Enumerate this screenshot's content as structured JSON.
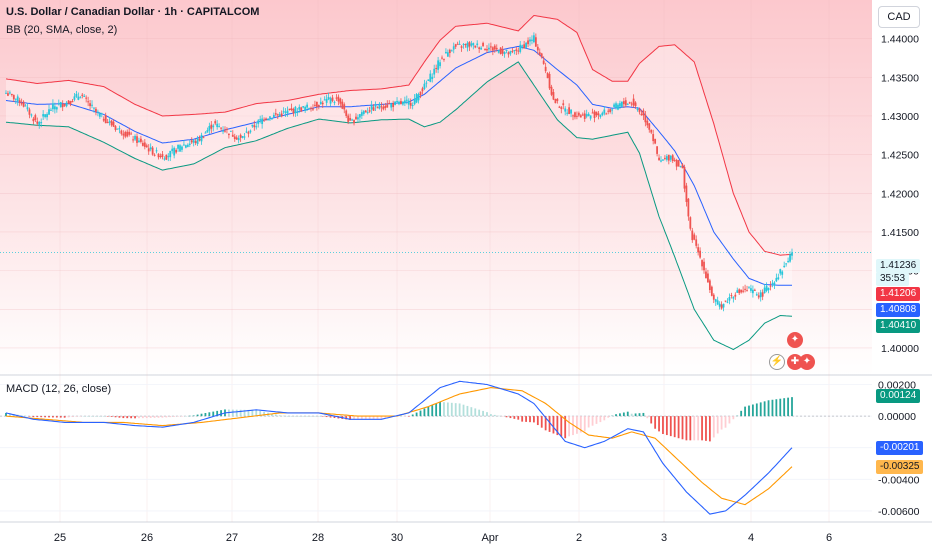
{
  "header": {
    "symbol_title": "U.S. Dollar / Canadian Dollar · 1h · CAPITALCOM",
    "bb_label": "BB (20, SMA, close, 2)",
    "macd_label": "MACD (12, 26, close)",
    "currency_button": "CAD"
  },
  "colors": {
    "up": "#26c6da",
    "down": "#ef5350",
    "bb_upper": "#f23645",
    "bb_basis": "#2962ff",
    "bb_lower": "#089981",
    "macd_line": "#2962ff",
    "signal_line": "#ff9800",
    "hist_pos": "#26a69a",
    "hist_neg": "#ef5350",
    "bg_pink": "#fdd9dc"
  },
  "price_badges": [
    {
      "text": "1.41236",
      "color": "#e0f7fa",
      "textcolor": "#131722"
    },
    {
      "text": "35:53",
      "color": "#e0f7fa",
      "textcolor": "#131722"
    },
    {
      "text": "1.41206",
      "color": "#f23645",
      "textcolor": "#ffffff"
    },
    {
      "text": "1.40808",
      "color": "#2962ff",
      "textcolor": "#ffffff"
    },
    {
      "text": "1.40410",
      "color": "#089981",
      "textcolor": "#ffffff"
    }
  ],
  "macd_badges": [
    {
      "text": "0.00124",
      "color": "#089981"
    },
    {
      "text": "-0.00201",
      "color": "#2962ff"
    },
    {
      "text": "-0.00325",
      "color": "#ffb74d"
    }
  ],
  "chart_data": [
    {
      "type": "candlestick",
      "title": "U.S. Dollar / Canadian Dollar · 1h · CAPITALCOM",
      "ylim": [
        1.3965,
        1.445
      ],
      "y_ticks": [
        "1.44000",
        "1.43500",
        "1.43000",
        "1.42500",
        "1.42000",
        "1.41500",
        "1.41000",
        "1.40500",
        "1.40000"
      ],
      "y_tick_values": [
        1.44,
        1.435,
        1.43,
        1.425,
        1.42,
        1.415,
        1.41,
        1.405,
        1.4
      ],
      "x_labels": [
        "25",
        "26",
        "27",
        "28",
        "30",
        "Apr",
        "2",
        "3",
        "4",
        "6"
      ],
      "last_price": 1.41236,
      "countdown": "35:53",
      "bb_upper_last": 1.41206,
      "bb_basis_last": 1.40808,
      "bb_lower_last": 1.4041,
      "anchors": [
        [
          0,
          1.433
        ],
        [
          8,
          1.4318
        ],
        [
          16,
          1.429
        ],
        [
          24,
          1.4312
        ],
        [
          32,
          1.4318
        ],
        [
          38,
          1.4328
        ],
        [
          46,
          1.4305
        ],
        [
          56,
          1.4285
        ],
        [
          66,
          1.427
        ],
        [
          76,
          1.4252
        ],
        [
          82,
          1.4248
        ],
        [
          90,
          1.4262
        ],
        [
          98,
          1.4268
        ],
        [
          106,
          1.429
        ],
        [
          112,
          1.4282
        ],
        [
          120,
          1.427
        ],
        [
          126,
          1.4285
        ],
        [
          132,
          1.4298
        ],
        [
          140,
          1.4302
        ],
        [
          148,
          1.4308
        ],
        [
          156,
          1.4312
        ],
        [
          164,
          1.432
        ],
        [
          170,
          1.4322
        ],
        [
          176,
          1.429
        ],
        [
          182,
          1.4305
        ],
        [
          190,
          1.4312
        ],
        [
          198,
          1.4315
        ],
        [
          208,
          1.4318
        ],
        [
          214,
          1.4338
        ],
        [
          222,
          1.4372
        ],
        [
          228,
          1.4388
        ],
        [
          236,
          1.4392
        ],
        [
          244,
          1.439
        ],
        [
          252,
          1.4385
        ],
        [
          258,
          1.438
        ],
        [
          264,
          1.439
        ],
        [
          270,
          1.44
        ],
        [
          276,
          1.436
        ],
        [
          280,
          1.432
        ],
        [
          286,
          1.4308
        ],
        [
          294,
          1.43
        ],
        [
          302,
          1.4302
        ],
        [
          308,
          1.4306
        ],
        [
          314,
          1.4315
        ],
        [
          320,
          1.4318
        ],
        [
          326,
          1.43
        ],
        [
          330,
          1.428
        ],
        [
          334,
          1.424
        ],
        [
          340,
          1.4248
        ],
        [
          346,
          1.423
        ],
        [
          350,
          1.415
        ],
        [
          356,
          1.411
        ],
        [
          362,
          1.406
        ],
        [
          366,
          1.4055
        ],
        [
          372,
          1.407
        ],
        [
          380,
          1.4075
        ],
        [
          386,
          1.4068
        ],
        [
          392,
          1.4085
        ],
        [
          398,
          1.4105
        ],
        [
          402,
          1.4124
        ]
      ],
      "bb": [
        [
          0,
          1.4348,
          1.432,
          1.4292
        ],
        [
          16,
          1.4342,
          1.4315,
          1.4288
        ],
        [
          32,
          1.4346,
          1.4316,
          1.4286
        ],
        [
          50,
          1.4338,
          1.4302,
          1.4266
        ],
        [
          66,
          1.4315,
          1.428,
          1.4245
        ],
        [
          80,
          1.43,
          1.4265,
          1.423
        ],
        [
          96,
          1.4302,
          1.427,
          1.4238
        ],
        [
          112,
          1.4305,
          1.4282,
          1.4259
        ],
        [
          128,
          1.4316,
          1.4292,
          1.4268
        ],
        [
          144,
          1.432,
          1.4302,
          1.4284
        ],
        [
          160,
          1.4328,
          1.4312,
          1.4296
        ],
        [
          176,
          1.4333,
          1.4312,
          1.4291
        ],
        [
          192,
          1.4335,
          1.4315,
          1.4295
        ],
        [
          206,
          1.434,
          1.4318,
          1.4296
        ],
        [
          214,
          1.437,
          1.4328,
          1.4286
        ],
        [
          222,
          1.4398,
          1.4345,
          1.4292
        ],
        [
          230,
          1.4416,
          1.4362,
          1.4308
        ],
        [
          246,
          1.442,
          1.4382,
          1.4344
        ],
        [
          262,
          1.441,
          1.439,
          1.437
        ],
        [
          270,
          1.443,
          1.4385,
          1.434
        ],
        [
          282,
          1.4425,
          1.436,
          1.4295
        ],
        [
          292,
          1.4408,
          1.434,
          1.4272
        ],
        [
          300,
          1.436,
          1.4315,
          1.427
        ],
        [
          310,
          1.4345,
          1.431,
          1.4275
        ],
        [
          318,
          1.4345,
          1.4312,
          1.4279
        ],
        [
          324,
          1.4368,
          1.431,
          1.4252
        ],
        [
          334,
          1.439,
          1.428,
          1.417
        ],
        [
          342,
          1.4392,
          1.4255,
          1.4118
        ],
        [
          352,
          1.437,
          1.421,
          1.405
        ],
        [
          362,
          1.429,
          1.415,
          1.401
        ],
        [
          372,
          1.42,
          1.4115,
          1.3998
        ],
        [
          380,
          1.415,
          1.409,
          1.401
        ],
        [
          388,
          1.4125,
          1.4082,
          1.4032
        ],
        [
          396,
          1.412,
          1.4081,
          1.4042
        ],
        [
          402,
          1.4121,
          1.4081,
          1.4041
        ]
      ]
    },
    {
      "type": "macd",
      "title": "MACD (12, 26, close)",
      "ylim": [
        -0.0067,
        0.0026
      ],
      "y_ticks": [
        "0.00200",
        "0.00000",
        "-0.00200",
        "-0.00400",
        "-0.00600"
      ],
      "y_tick_values": [
        0.002,
        0.0,
        -0.002,
        -0.004,
        -0.006
      ],
      "histogram_last": 0.00124,
      "macd_last": -0.00201,
      "signal_last": -0.00325,
      "macd_line": [
        [
          0,
          0.0002
        ],
        [
          14,
          -0.0002
        ],
        [
          30,
          -0.0004
        ],
        [
          50,
          -0.0004
        ],
        [
          66,
          -0.0006
        ],
        [
          80,
          -0.0007
        ],
        [
          96,
          -0.0004
        ],
        [
          112,
          0.0002
        ],
        [
          128,
          0.0004
        ],
        [
          144,
          0.0002
        ],
        [
          160,
          0.0002
        ],
        [
          176,
          -0.0002
        ],
        [
          192,
          -0.0002
        ],
        [
          206,
          0.0002
        ],
        [
          214,
          0.001
        ],
        [
          222,
          0.0018
        ],
        [
          232,
          0.0022
        ],
        [
          246,
          0.002
        ],
        [
          262,
          0.0014
        ],
        [
          270,
          0.0008
        ],
        [
          278,
          -0.0004
        ],
        [
          286,
          -0.0016
        ],
        [
          296,
          -0.002
        ],
        [
          306,
          -0.0016
        ],
        [
          318,
          -0.0008
        ],
        [
          326,
          -0.001
        ],
        [
          336,
          -0.003
        ],
        [
          348,
          -0.0048
        ],
        [
          360,
          -0.0062
        ],
        [
          368,
          -0.006
        ],
        [
          378,
          -0.005
        ],
        [
          390,
          -0.0036
        ],
        [
          402,
          -0.002
        ]
      ],
      "signal_line": [
        [
          0,
          0.0
        ],
        [
          20,
          -0.0002
        ],
        [
          40,
          -0.0004
        ],
        [
          60,
          -0.0004
        ],
        [
          80,
          -0.0006
        ],
        [
          100,
          -0.0004
        ],
        [
          120,
          -0.0001
        ],
        [
          140,
          0.0002
        ],
        [
          160,
          0.0002
        ],
        [
          180,
          0.0
        ],
        [
          200,
          0.0
        ],
        [
          216,
          0.0006
        ],
        [
          232,
          0.0014
        ],
        [
          248,
          0.0018
        ],
        [
          264,
          0.0016
        ],
        [
          276,
          0.0008
        ],
        [
          288,
          -0.0004
        ],
        [
          298,
          -0.0012
        ],
        [
          310,
          -0.0014
        ],
        [
          320,
          -0.001
        ],
        [
          332,
          -0.0014
        ],
        [
          344,
          -0.0028
        ],
        [
          356,
          -0.0042
        ],
        [
          366,
          -0.0052
        ],
        [
          378,
          -0.0056
        ],
        [
          390,
          -0.0046
        ],
        [
          402,
          -0.0032
        ]
      ]
    }
  ]
}
